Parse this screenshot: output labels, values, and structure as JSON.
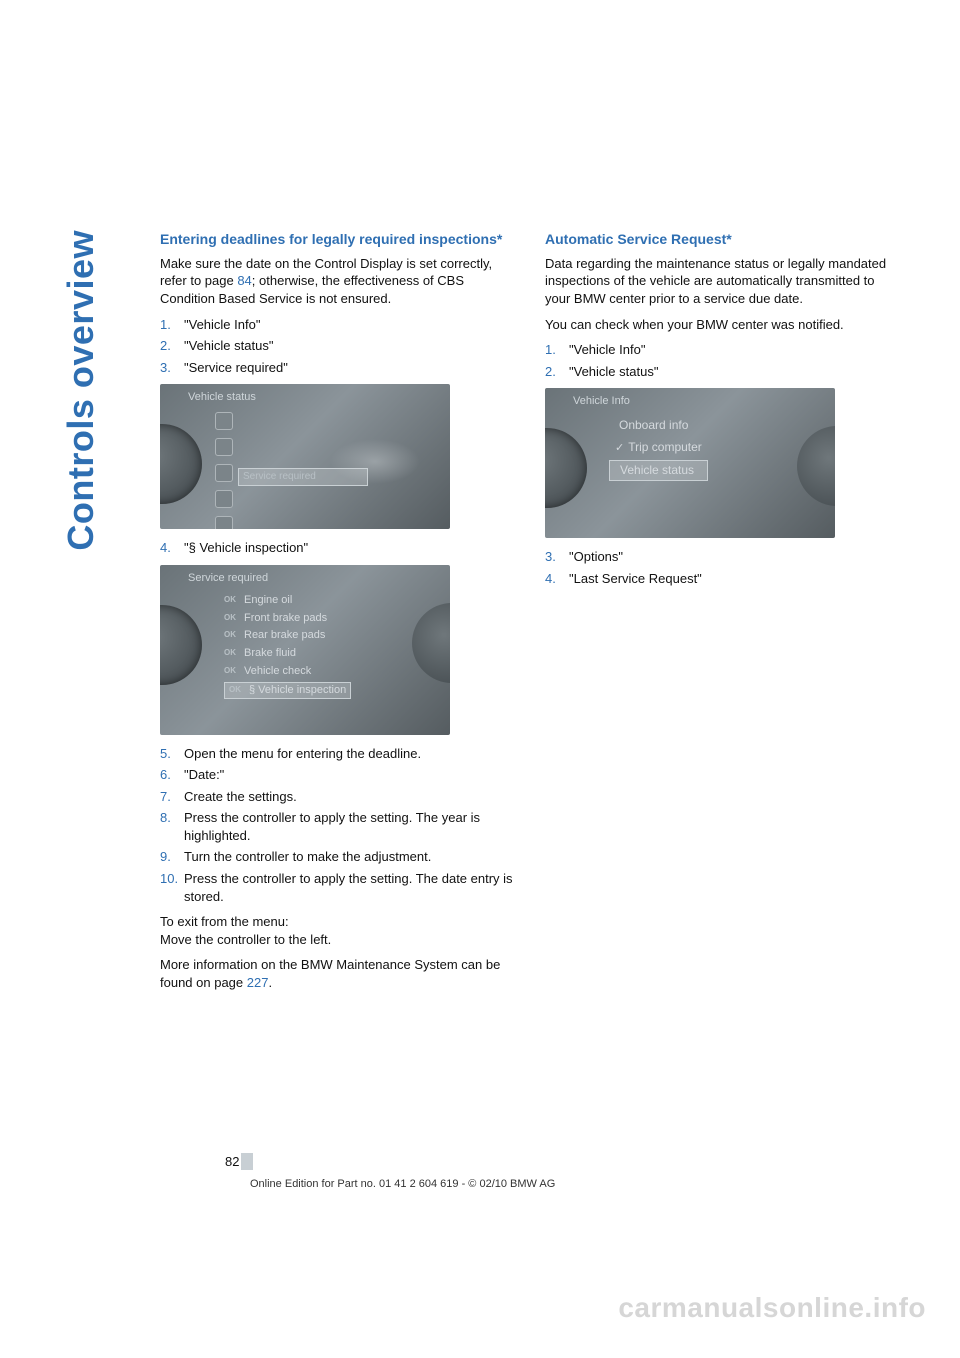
{
  "sidebar": {
    "section_label": "Controls overview"
  },
  "left": {
    "heading": "Entering deadlines for legally required inspections*",
    "intro_a": "Make sure the date on the Control Display is set correctly, refer to page ",
    "intro_link": "84",
    "intro_b": "; otherwise, the effectiveness of CBS Condition Based Service is not ensured.",
    "steps_a": [
      {
        "n": "1.",
        "t": "\"Vehicle Info\""
      },
      {
        "n": "2.",
        "t": "\"Vehicle status\""
      },
      {
        "n": "3.",
        "t": "\"Service required\""
      }
    ],
    "shot1": {
      "title": "Vehicle status",
      "selected": "Service required"
    },
    "steps_b": [
      {
        "n": "4.",
        "t": "\"§ Vehicle inspection\""
      }
    ],
    "shot2": {
      "title": "Service required",
      "items": [
        {
          "ok": "OK",
          "label": "Engine oil"
        },
        {
          "ok": "OK",
          "label": "Front brake pads"
        },
        {
          "ok": "OK",
          "label": "Rear brake pads"
        },
        {
          "ok": "OK",
          "label": "Brake fluid"
        },
        {
          "ok": "OK",
          "label": "Vehicle check"
        },
        {
          "ok": "OK",
          "label": "§ Vehicle inspection"
        }
      ]
    },
    "steps_c": [
      {
        "n": "5.",
        "t": "Open the menu for entering the deadline."
      },
      {
        "n": "6.",
        "t": "\"Date:\""
      },
      {
        "n": "7.",
        "t": "Create the settings."
      },
      {
        "n": "8.",
        "t": "Press the controller to apply the setting. The year is highlighted."
      },
      {
        "n": "9.",
        "t": "Turn the controller to make the adjustment."
      },
      {
        "n": "10.",
        "t": "Press the controller to apply the setting. The date entry is stored."
      }
    ],
    "exit_a": "To exit from the menu:",
    "exit_b": "Move the controller to the left.",
    "more_a": "More information on the BMW Maintenance System can be found on page ",
    "more_link": "227",
    "more_b": "."
  },
  "right": {
    "heading": "Automatic Service Request*",
    "p1": "Data regarding the maintenance status or legally mandated inspections of the vehicle are automatically transmitted to your BMW center prior to a service due date.",
    "p2": "You can check when your BMW center was notified.",
    "steps_a": [
      {
        "n": "1.",
        "t": "\"Vehicle Info\""
      },
      {
        "n": "2.",
        "t": "\"Vehicle status\""
      }
    ],
    "shot3": {
      "title": "Vehicle Info",
      "items": [
        {
          "check": "",
          "label": "Onboard info"
        },
        {
          "check": "✓",
          "label": "Trip computer"
        },
        {
          "check": "",
          "label": "Vehicle status"
        }
      ]
    },
    "steps_b": [
      {
        "n": "3.",
        "t": "\"Options\""
      },
      {
        "n": "4.",
        "t": "\"Last Service Request\""
      }
    ]
  },
  "footer": {
    "page_num": "82",
    "line": "Online Edition for Part no. 01 41 2 604 619 - © 02/10 BMW AG"
  },
  "watermark": "carmanualsonline.info",
  "colors": {
    "brand": "#2f6fb2",
    "text": "#111111",
    "bg": "#ffffff",
    "watermark": "#d6d6d6",
    "screenshot_bg_from": "#6a7378",
    "screenshot_bg_mid": "#8b949a",
    "screenshot_bg_to": "#555c60"
  }
}
